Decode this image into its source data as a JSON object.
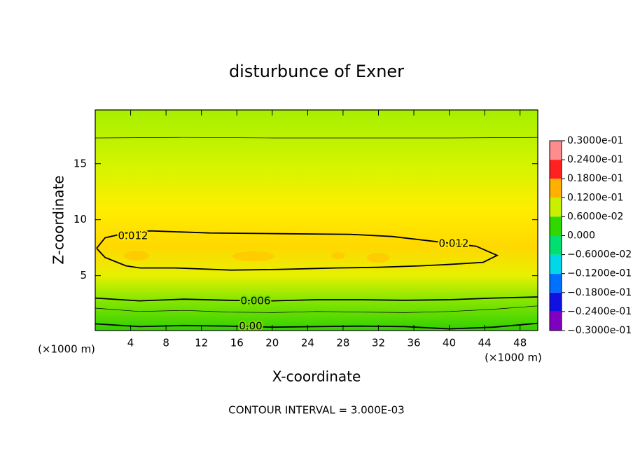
{
  "chart_data": {
    "type": "contour",
    "title": "disturbunce of Exner",
    "x_label": "X-coordinate",
    "y_label": "Z-coordinate",
    "x_unit": "(×1000 m)",
    "y_unit": "(×1000 m)",
    "footer": "CONTOUR INTERVAL = 3.000E-03",
    "xlim": [
      0,
      50
    ],
    "ylim": [
      0.1,
      19.8
    ],
    "xticks": [
      4,
      8,
      12,
      16,
      20,
      24,
      28,
      32,
      36,
      40,
      44,
      48
    ],
    "yticks": [
      5,
      10,
      15
    ],
    "contours": [
      {
        "level": 0.012,
        "labels": [
          "0.012",
          "0.012"
        ],
        "x": [
          0.16,
          1.11,
          3.48,
          6.25,
          12.97,
          20.89,
          28.8,
          33.54,
          38.29,
          43.04,
          45.41,
          43.83,
          39.87,
          36.71,
          31.96,
          27.22,
          20.89,
          15.35,
          9.02,
          5.06,
          3.48,
          1.11,
          0.16
        ],
        "y": [
          7.44,
          8.38,
          8.81,
          9.0,
          8.81,
          8.75,
          8.69,
          8.5,
          8.06,
          7.63,
          6.81,
          6.19,
          6.0,
          5.88,
          5.75,
          5.69,
          5.56,
          5.5,
          5.69,
          5.69,
          5.88,
          6.63,
          7.44
        ]
      },
      {
        "level": 0.009,
        "x": [
          0,
          10,
          20,
          30,
          40,
          50
        ],
        "y": [
          17.3,
          17.35,
          17.3,
          17.3,
          17.3,
          17.35
        ]
      },
      {
        "level": 0.006,
        "labels": [
          "0.006"
        ],
        "x": [
          0,
          5,
          10,
          15,
          20,
          25,
          30,
          35,
          40,
          45,
          50
        ],
        "y": [
          3.0,
          2.75,
          2.9,
          2.8,
          2.75,
          2.85,
          2.85,
          2.8,
          2.85,
          3.0,
          3.1
        ]
      },
      {
        "level": 0.003,
        "x": [
          0,
          5,
          10,
          15,
          20,
          25,
          30,
          35,
          40,
          45,
          50
        ],
        "y": [
          2.1,
          1.8,
          1.9,
          1.75,
          1.7,
          1.8,
          1.75,
          1.7,
          1.8,
          2.0,
          2.3
        ]
      },
      {
        "level": 0,
        "labels": [
          "0.00"
        ],
        "x": [
          0,
          5,
          10,
          15,
          20,
          25,
          30,
          35,
          40,
          45,
          50
        ],
        "y": [
          0.7,
          0.45,
          0.55,
          0.5,
          0.4,
          0.45,
          0.5,
          0.45,
          0.25,
          0.4,
          0.75
        ]
      }
    ],
    "colorbar": {
      "lim": [
        -0.03,
        0.03
      ],
      "colors": [
        "#8000c0",
        "#1010e0",
        "#0070ff",
        "#00d8e8",
        "#00e070",
        "#30d800",
        "#c8f000",
        "#ffb000",
        "#ff2020",
        "#ff8c8c"
      ],
      "ticks": [
        {
          "value": -0.03,
          "label": "−0.3000e-01"
        },
        {
          "value": -0.024,
          "label": "−0.2400e-01"
        },
        {
          "value": -0.018,
          "label": "−0.1800e-01"
        },
        {
          "value": -0.012,
          "label": "−0.1200e-01"
        },
        {
          "value": -0.006,
          "label": "−0.6000e-02"
        },
        {
          "value": 0,
          "label": "0.000"
        },
        {
          "value": 0.006,
          "label": "0.6000e-02"
        },
        {
          "value": 0.012,
          "label": "0.1200e-01"
        },
        {
          "value": 0.018,
          "label": "0.1800e-01"
        },
        {
          "value": 0.024,
          "label": "0.2400e-01"
        },
        {
          "value": 0.03,
          "label": "0.3000e-01"
        }
      ]
    }
  }
}
